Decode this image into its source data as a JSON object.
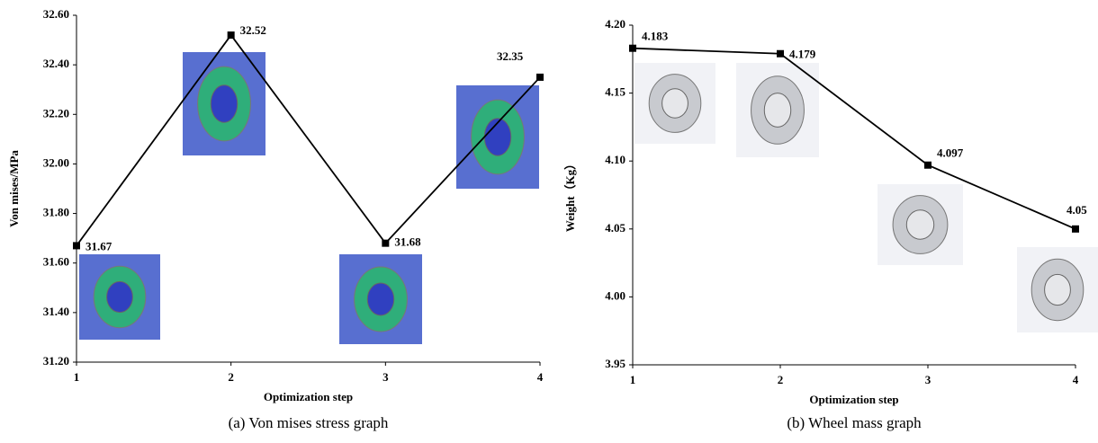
{
  "chart_data": [
    {
      "type": "line",
      "caption": "(a) Von mises stress graph",
      "xlabel": "Optimization step",
      "ylabel": "Von mises/MPa",
      "x": [
        1,
        2,
        3,
        4
      ],
      "values": [
        31.67,
        32.52,
        31.68,
        32.35
      ],
      "color": "#000000",
      "xlim": [
        1,
        4
      ],
      "xticks": [
        1,
        2,
        3,
        4
      ],
      "ylim": [
        31.2,
        32.6
      ],
      "yticks": [
        {
          "value": 31.2,
          "label": "31.20"
        },
        {
          "value": 31.4,
          "label": "31.40"
        },
        {
          "value": 31.6,
          "label": "31.60"
        },
        {
          "value": 31.8,
          "label": "31.80"
        },
        {
          "value": 32.0,
          "label": "32.00"
        },
        {
          "value": 32.2,
          "label": "32.20"
        },
        {
          "value": 32.4,
          "label": "32.40"
        },
        {
          "value": 32.6,
          "label": "32.60"
        }
      ]
    },
    {
      "type": "line",
      "caption": "(b) Wheel mass graph",
      "xlabel": "Optimization step",
      "ylabel": "Weight（Kg）",
      "x": [
        1,
        2,
        3,
        4
      ],
      "values": [
        4.183,
        4.179,
        4.097,
        4.05
      ],
      "color": "#000000",
      "xlim": [
        1,
        4
      ],
      "xticks": [
        1,
        2,
        3,
        4
      ],
      "ylim": [
        3.95,
        4.2
      ],
      "yticks": [
        3.95,
        {
          "value": 4.0,
          "label": "4.00"
        },
        4.05,
        {
          "value": 4.1,
          "label": "4.10"
        },
        4.15,
        {
          "value": 4.2,
          "label": "4.20"
        }
      ]
    }
  ]
}
